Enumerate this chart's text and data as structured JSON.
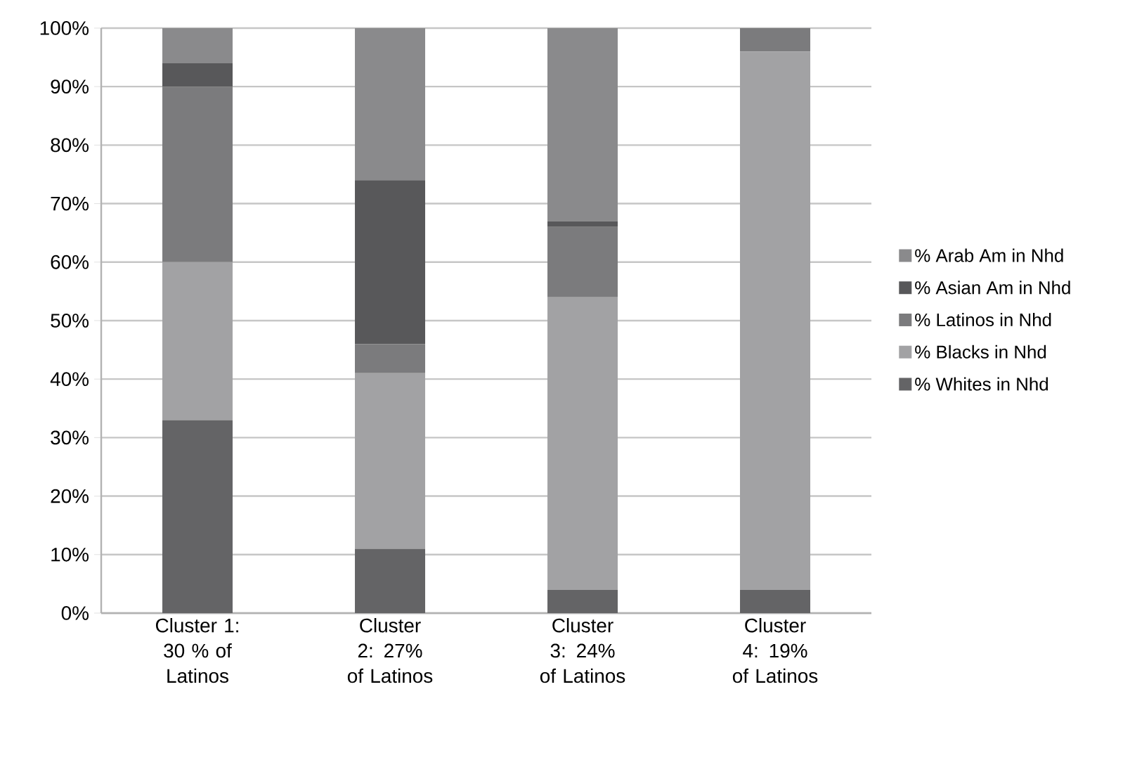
{
  "chart_data": {
    "type": "bar",
    "stacked": true,
    "categories": [
      "Cluster 1: 30 % of Latinos",
      "Cluster 2: 27% of Latinos",
      "Cluster 3: 24% of Latinos",
      "Cluster 4: 19% of Latinos"
    ],
    "series": [
      {
        "name": "% Whites in Nhd",
        "color": "#646466",
        "values": [
          33,
          11,
          4,
          4
        ]
      },
      {
        "name": "% Blacks in Nhd",
        "color": "#a2a2a4",
        "values": [
          27,
          30,
          50,
          92
        ]
      },
      {
        "name": "% Latinos in Nhd",
        "color": "#7b7b7d",
        "values": [
          30,
          5,
          12,
          4
        ]
      },
      {
        "name": "% Asian Am in Nhd",
        "color": "#58585a",
        "values": [
          4,
          28,
          1,
          0
        ]
      },
      {
        "name": "% Arab Am in Nhd",
        "color": "#8a8a8c",
        "values": [
          6,
          26,
          33,
          0
        ]
      }
    ],
    "ylim": [
      0,
      100
    ],
    "yticks": [
      {
        "value": 0,
        "label": "0%"
      },
      {
        "value": 10,
        "label": "10%"
      },
      {
        "value": 20,
        "label": "20%"
      },
      {
        "value": 30,
        "label": "30%"
      },
      {
        "value": 40,
        "label": "40%"
      },
      {
        "value": 50,
        "label": "50%"
      },
      {
        "value": 60,
        "label": "60%"
      },
      {
        "value": 70,
        "label": "70%"
      },
      {
        "value": 80,
        "label": "80%"
      },
      {
        "value": 90,
        "label": "90%"
      },
      {
        "value": 100,
        "label": "100%"
      }
    ],
    "grid": "y",
    "legend": "right"
  }
}
